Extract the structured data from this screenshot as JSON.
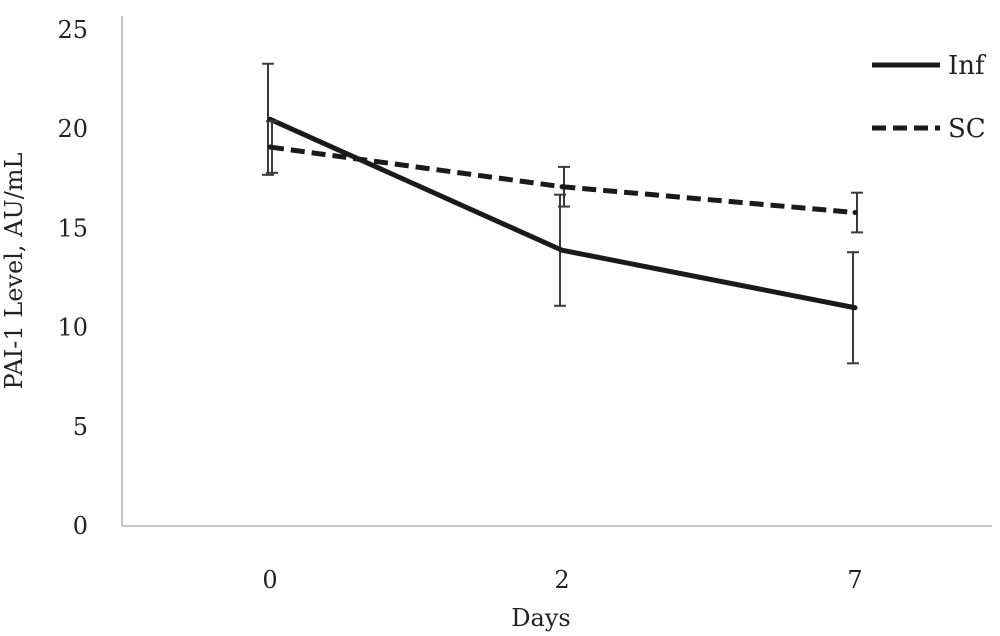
{
  "chart_data": {
    "type": "line",
    "title": "",
    "xlabel": "Days",
    "ylabel": "PAI-1 Level, AU/mL",
    "categories": [
      "0",
      "2",
      "7"
    ],
    "ylim": [
      0,
      25
    ],
    "yticks": [
      0,
      5,
      10,
      15,
      20,
      25
    ],
    "grid": false,
    "legend_position": "top-right",
    "series": [
      {
        "name": "Inf",
        "line_style": "solid",
        "color": "#1a1a1a",
        "values": [
          20.5,
          13.9,
          11.0
        ],
        "error": [
          2.8,
          2.8,
          2.8
        ]
      },
      {
        "name": "SC",
        "line_style": "dashed",
        "color": "#1a1a1a",
        "values": [
          19.1,
          17.1,
          15.8
        ],
        "error": [
          1.3,
          1.0,
          1.0
        ]
      }
    ]
  }
}
